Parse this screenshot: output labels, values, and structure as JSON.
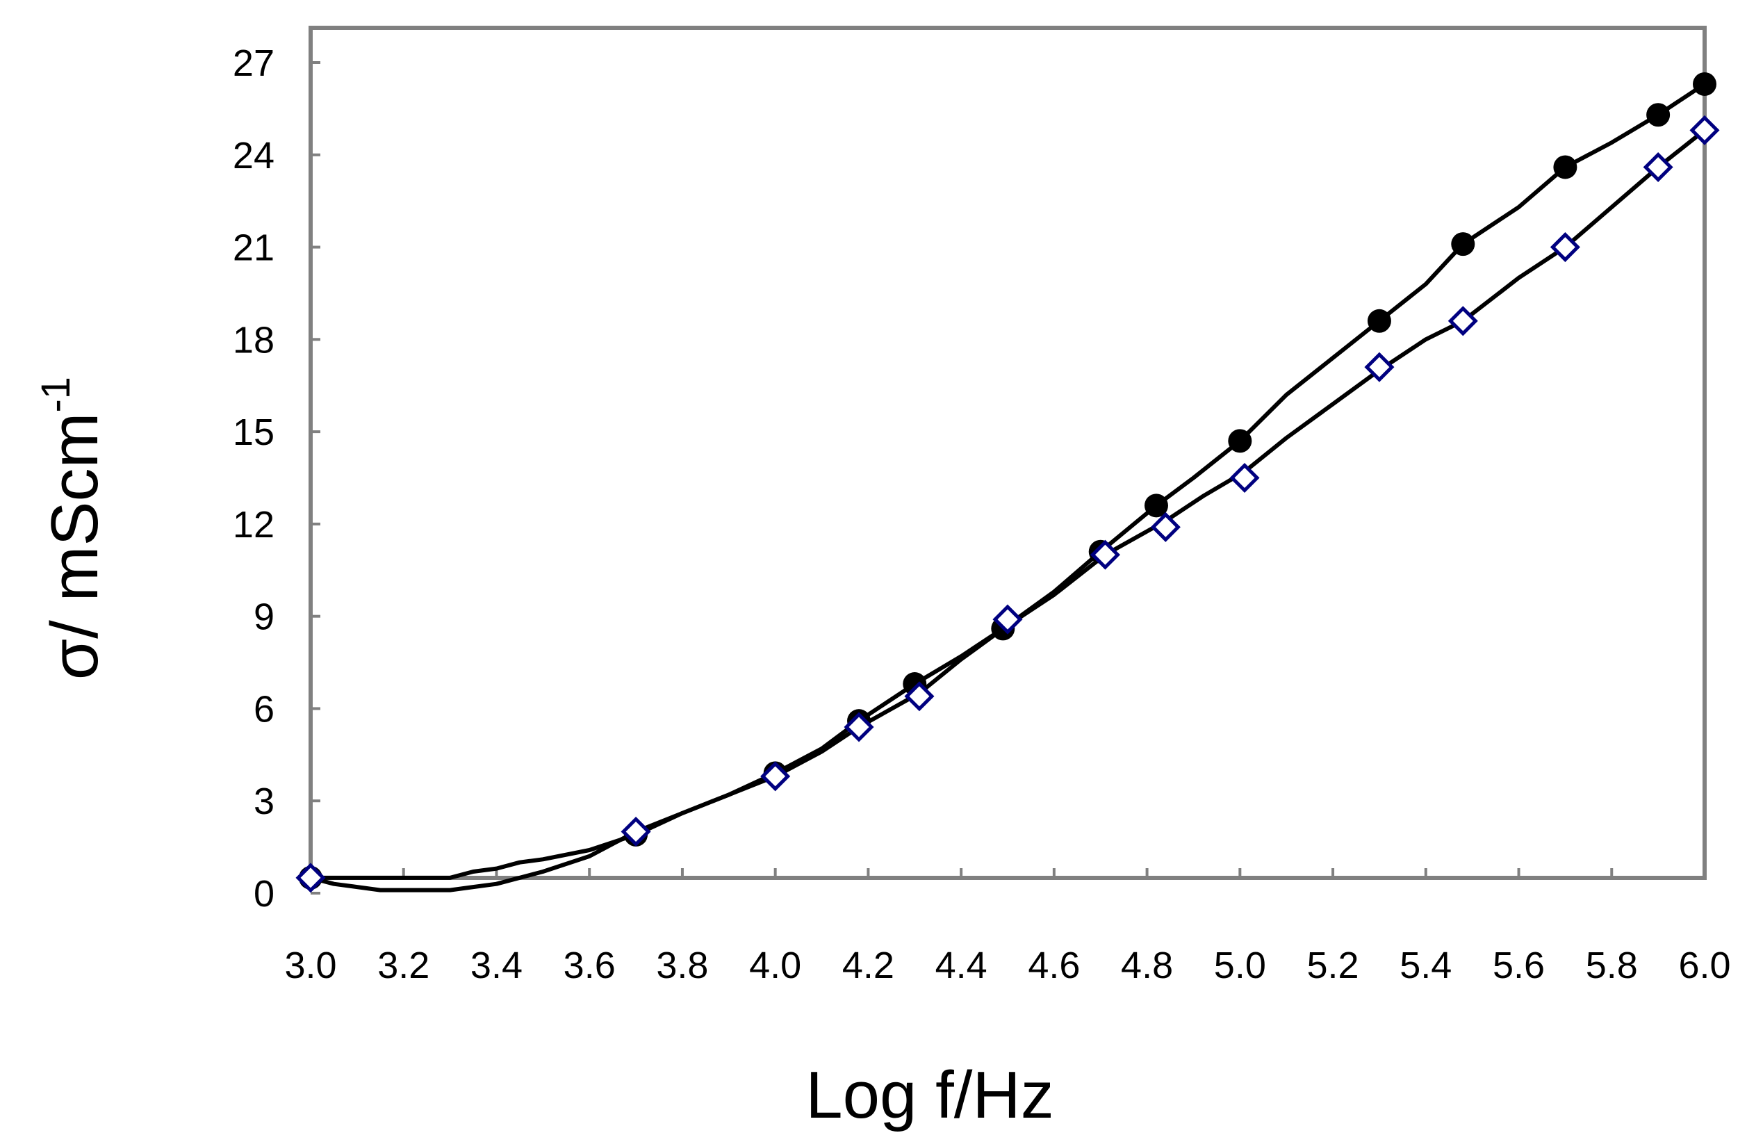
{
  "chart_data": {
    "type": "line",
    "xlabel": "Log f/Hz",
    "ylabel": "σ/ mScm",
    "ylabel_superscript": "-1",
    "xlim": [
      3.0,
      6.0
    ],
    "ylim": [
      0,
      27
    ],
    "x_ticks": [
      "3.0",
      "3.2",
      "3.4",
      "3.6",
      "3.8",
      "4.0",
      "4.2",
      "4.4",
      "4.6",
      "4.8",
      "5.0",
      "5.2",
      "5.4",
      "5.6",
      "5.8",
      "6.0"
    ],
    "y_ticks": [
      "0",
      "3",
      "6",
      "9",
      "12",
      "15",
      "18",
      "21",
      "24",
      "27"
    ],
    "grid": false,
    "legend": "none",
    "series": [
      {
        "marker": "filled-circle",
        "color": "#000000",
        "points": [
          [
            3.0,
            0.5
          ],
          [
            3.7,
            1.9
          ],
          [
            4.0,
            3.9
          ],
          [
            4.18,
            5.6
          ],
          [
            4.3,
            6.8
          ],
          [
            4.49,
            8.6
          ],
          [
            4.7,
            11.1
          ],
          [
            4.82,
            12.6
          ],
          [
            5.0,
            14.7
          ],
          [
            5.3,
            18.6
          ],
          [
            5.48,
            21.1
          ],
          [
            5.7,
            23.6
          ],
          [
            5.9,
            25.3
          ],
          [
            6.0,
            26.3
          ]
        ],
        "curve": [
          [
            3.0,
            0.5
          ],
          [
            3.1,
            0.5
          ],
          [
            3.2,
            0.5
          ],
          [
            3.3,
            0.5
          ],
          [
            3.35,
            0.7
          ],
          [
            3.4,
            0.8
          ],
          [
            3.45,
            1.0
          ],
          [
            3.5,
            1.1
          ],
          [
            3.6,
            1.4
          ],
          [
            3.7,
            1.9
          ],
          [
            3.8,
            2.6
          ],
          [
            3.9,
            3.2
          ],
          [
            4.0,
            3.9
          ],
          [
            4.1,
            4.7
          ],
          [
            4.18,
            5.6
          ],
          [
            4.3,
            6.8
          ],
          [
            4.4,
            7.7
          ],
          [
            4.49,
            8.6
          ],
          [
            4.6,
            9.8
          ],
          [
            4.7,
            11.1
          ],
          [
            4.82,
            12.6
          ],
          [
            4.9,
            13.5
          ],
          [
            5.0,
            14.7
          ],
          [
            5.1,
            16.2
          ],
          [
            5.2,
            17.4
          ],
          [
            5.3,
            18.6
          ],
          [
            5.4,
            19.8
          ],
          [
            5.48,
            21.1
          ],
          [
            5.6,
            22.3
          ],
          [
            5.7,
            23.6
          ],
          [
            5.8,
            24.4
          ],
          [
            5.9,
            25.3
          ],
          [
            6.0,
            26.3
          ]
        ]
      },
      {
        "marker": "hollow-diamond",
        "color": "#000080",
        "points": [
          [
            3.0,
            0.5
          ],
          [
            3.7,
            2.0
          ],
          [
            4.0,
            3.8
          ],
          [
            4.18,
            5.4
          ],
          [
            4.31,
            6.4
          ],
          [
            4.5,
            8.9
          ],
          [
            4.71,
            11.0
          ],
          [
            4.84,
            11.9
          ],
          [
            5.01,
            13.5
          ],
          [
            5.3,
            17.1
          ],
          [
            5.48,
            18.6
          ],
          [
            5.7,
            21.0
          ],
          [
            5.9,
            23.6
          ],
          [
            6.0,
            24.8
          ]
        ],
        "curve": [
          [
            3.0,
            0.5
          ],
          [
            3.05,
            0.3
          ],
          [
            3.1,
            0.2
          ],
          [
            3.15,
            0.1
          ],
          [
            3.2,
            0.1
          ],
          [
            3.3,
            0.1
          ],
          [
            3.35,
            0.2
          ],
          [
            3.4,
            0.3
          ],
          [
            3.5,
            0.7
          ],
          [
            3.6,
            1.2
          ],
          [
            3.7,
            2.0
          ],
          [
            3.8,
            2.6
          ],
          [
            3.9,
            3.2
          ],
          [
            4.0,
            3.8
          ],
          [
            4.1,
            4.6
          ],
          [
            4.18,
            5.4
          ],
          [
            4.31,
            6.5
          ],
          [
            4.4,
            7.6
          ],
          [
            4.5,
            8.7
          ],
          [
            4.6,
            9.7
          ],
          [
            4.71,
            11.0
          ],
          [
            4.84,
            12.1
          ],
          [
            4.92,
            12.9
          ],
          [
            5.01,
            13.7
          ],
          [
            5.1,
            14.8
          ],
          [
            5.2,
            15.9
          ],
          [
            5.3,
            17.0
          ],
          [
            5.4,
            18.0
          ],
          [
            5.48,
            18.6
          ],
          [
            5.6,
            20.0
          ],
          [
            5.7,
            21.0
          ],
          [
            5.8,
            22.3
          ],
          [
            5.9,
            23.6
          ],
          [
            6.0,
            24.8
          ]
        ]
      }
    ]
  }
}
